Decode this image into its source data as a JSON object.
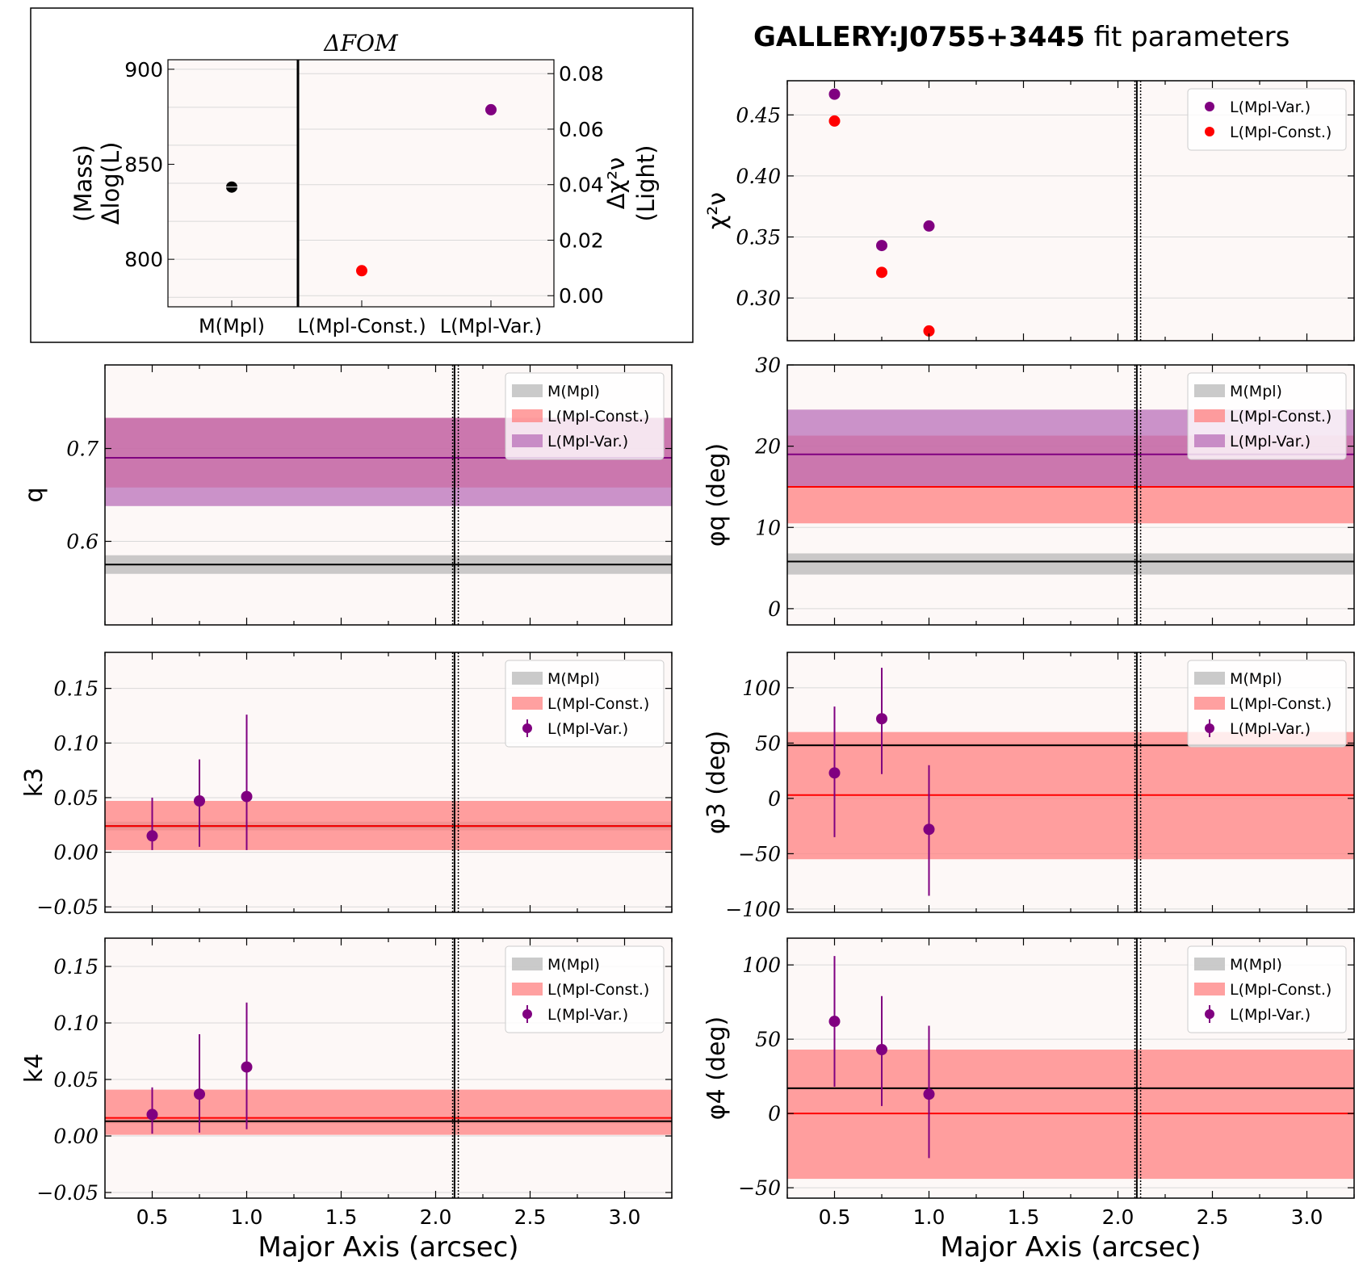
{
  "suptitle": {
    "bold": "GALLERY:J0755+3445",
    "rest": " fit parameters"
  },
  "colors": {
    "background": "#fdf8f7",
    "mass": "#000000",
    "const": "#ff0000",
    "var": "#800080",
    "mass_band": "#b8b8b8",
    "const_band": "#ff8080",
    "var_band": "#b566b5",
    "gridline": "#d9d9d9"
  },
  "legend_labels": {
    "mass": "M(Mpl)",
    "const": "L(Mpl-Const.)",
    "var": "L(Mpl-Var.)"
  },
  "xlabel": "Major Axis (arcsec)",
  "xlim": [
    0.25,
    3.25
  ],
  "xticks": [
    "0.5",
    "1.0",
    "1.5",
    "2.0",
    "2.5",
    "3.0"
  ],
  "vlines": [
    2.09,
    2.1,
    2.12
  ],
  "x_points": [
    0.5,
    0.75,
    1.0
  ],
  "chart_data": [
    {
      "id": "fom",
      "type": "scatter",
      "title": "ΔFOM",
      "ylabel_left": [
        "(Mass)",
        "Δlog(L)"
      ],
      "ylabel_right": [
        "Δχ²ν",
        "(Light)"
      ],
      "categories": [
        "M(Mpl)",
        "L(Mpl-Const.)",
        "L(Mpl-Var.)"
      ],
      "ylim_left": [
        775,
        905
      ],
      "ylim_right": [
        -0.004,
        0.085
      ],
      "yticks_left": [
        "800",
        "850",
        "900"
      ],
      "yticks_right": [
        "0.00",
        "0.02",
        "0.04",
        "0.06",
        "0.08"
      ],
      "points": [
        {
          "category": "M(Mpl)",
          "axis": "left",
          "value": 838
        },
        {
          "category": "L(Mpl-Const.)",
          "axis": "right",
          "value": 0.009
        },
        {
          "category": "L(Mpl-Var.)",
          "axis": "right",
          "value": 0.067
        }
      ]
    },
    {
      "id": "chi2",
      "type": "scatter",
      "ylabel": "χ²ν",
      "ylim": [
        0.265,
        0.478
      ],
      "yticks": [
        "0.30",
        "0.35",
        "0.40",
        "0.45"
      ],
      "series": [
        {
          "name": "L(Mpl-Var.)",
          "values": [
            0.467,
            0.343,
            0.359
          ]
        },
        {
          "name": "L(Mpl-Const.)",
          "values": [
            0.445,
            0.321,
            0.273
          ]
        }
      ],
      "legend": "top-right"
    },
    {
      "id": "q",
      "type": "line",
      "ylabel": "q",
      "ylim": [
        0.51,
        0.79
      ],
      "yticks": [
        "0.6",
        "0.7"
      ],
      "bands": [
        {
          "name": "M(Mpl)",
          "value": 0.575,
          "low": 0.565,
          "high": 0.585
        },
        {
          "name": "L(Mpl-Const.)",
          "value": 0.69,
          "low": 0.658,
          "high": 0.733
        },
        {
          "name": "L(Mpl-Var.)",
          "value": 0.69,
          "low": 0.638,
          "high": 0.733
        }
      ],
      "legend": "top-right"
    },
    {
      "id": "phiq",
      "type": "line",
      "ylabel": "φq (deg)",
      "ylim": [
        -2,
        30
      ],
      "yticks": [
        "0",
        "10",
        "20",
        "30"
      ],
      "bands": [
        {
          "name": "M(Mpl)",
          "value": 5.8,
          "low": 4.2,
          "high": 6.8
        },
        {
          "name": "L(Mpl-Const.)",
          "value": 15,
          "low": 10.5,
          "high": 21.3
        },
        {
          "name": "L(Mpl-Var.)",
          "value": 19,
          "low": 15,
          "high": 24.5
        }
      ],
      "legend": "top-right"
    },
    {
      "id": "k3",
      "type": "errorbar",
      "ylabel": "k3",
      "ylim": [
        -0.055,
        0.183
      ],
      "yticks": [
        "−0.05",
        "0.00",
        "0.05",
        "0.10",
        "0.15"
      ],
      "bands": [
        {
          "name": "M(Mpl)",
          "value": 0.024,
          "low": 0.02,
          "high": 0.028
        },
        {
          "name": "L(Mpl-Const.)",
          "value": 0.024,
          "low": 0.002,
          "high": 0.047
        }
      ],
      "points": {
        "name": "L(Mpl-Var.)",
        "values": [
          0.015,
          0.047,
          0.051
        ],
        "err_low": [
          0.002,
          0.005,
          0.002
        ],
        "err_high": [
          0.05,
          0.085,
          0.126
        ]
      },
      "legend": "top-right"
    },
    {
      "id": "phi3",
      "type": "errorbar",
      "ylabel": "φ3 (deg)",
      "ylim": [
        -103,
        132
      ],
      "yticks": [
        "−100",
        "−50",
        "0",
        "50",
        "100"
      ],
      "bands": [
        {
          "name": "M(Mpl)",
          "value": 48,
          "low": 46.5,
          "high": 49.5
        },
        {
          "name": "L(Mpl-Const.)",
          "value": 3,
          "low": -55,
          "high": 60
        }
      ],
      "points": {
        "name": "L(Mpl-Var.)",
        "values": [
          23,
          72,
          -28
        ],
        "err_low": [
          -35,
          22,
          -88
        ],
        "err_high": [
          83,
          118,
          30
        ]
      },
      "legend": "top-right"
    },
    {
      "id": "k4",
      "type": "errorbar",
      "ylabel": "k4",
      "ylim": [
        -0.055,
        0.175
      ],
      "yticks": [
        "−0.05",
        "0.00",
        "0.05",
        "0.10",
        "0.15"
      ],
      "bands": [
        {
          "name": "M(Mpl)",
          "value": 0.013,
          "low": 0.011,
          "high": 0.015
        },
        {
          "name": "L(Mpl-Const.)",
          "value": 0.016,
          "low": 0.001,
          "high": 0.041
        }
      ],
      "points": {
        "name": "L(Mpl-Var.)",
        "values": [
          0.019,
          0.037,
          0.061
        ],
        "err_low": [
          0.002,
          0.003,
          0.006
        ],
        "err_high": [
          0.043,
          0.09,
          0.118
        ]
      },
      "legend": "top-right"
    },
    {
      "id": "phi4",
      "type": "errorbar",
      "ylabel": "φ4 (deg)",
      "ylim": [
        -57,
        118
      ],
      "yticks": [
        "−50",
        "0",
        "50",
        "100"
      ],
      "bands": [
        {
          "name": "M(Mpl)",
          "value": 17,
          "low": 16,
          "high": 18
        },
        {
          "name": "L(Mpl-Const.)",
          "value": 0,
          "low": -44,
          "high": 43
        }
      ],
      "points": {
        "name": "L(Mpl-Var.)",
        "values": [
          62,
          43,
          13
        ],
        "err_low": [
          18,
          5,
          -30
        ],
        "err_high": [
          106,
          79,
          59
        ]
      },
      "legend": "top-right"
    }
  ]
}
